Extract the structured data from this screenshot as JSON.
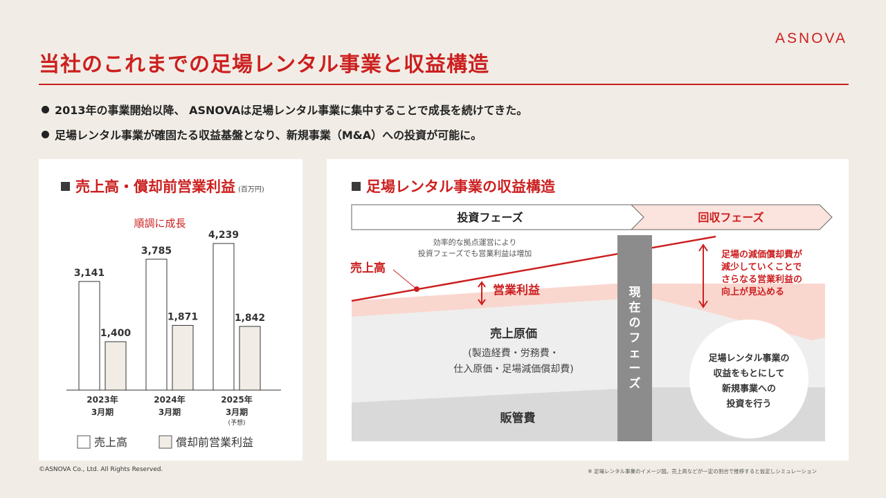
{
  "brand": {
    "logo": "ASNOVA"
  },
  "title": "当社のこれまでの足場レンタル事業と収益構造",
  "bullets": [
    "2013年の事業開始以降、 ASNOVAは足場レンタル事業に集中することで成長を続けてきた。",
    "足場レンタル事業が確固たる収益基盤となり、新規事業（M&A）への投資が可能に。"
  ],
  "left_panel": {
    "heading": "売上高・償却前営業利益",
    "unit": "(百万円)",
    "annotation": "順調に成長",
    "legend": {
      "sales": "売上高",
      "profit": "償却前営業利益"
    }
  },
  "right_panel": {
    "heading": "足場レンタル事業の収益構造",
    "phase_invest": "投資フェーズ",
    "phase_recover": "回収フェーズ",
    "current_phase": "現在のフェーズ",
    "note_line1": "効率的な拠点運営により",
    "note_line2": "投資フェーズでも営業利益は増加",
    "label_sales": "売上高",
    "label_op_profit": "営業利益",
    "label_cogs": "売上原価",
    "label_cogs_detail1": "(製造経費・労務費・",
    "label_cogs_detail2": "仕入原価・足場減価償却費)",
    "label_sga": "販管費",
    "recover_note": [
      "足場の減価償却費が",
      "減少していくことで",
      "さらなる営業利益の",
      "向上が見込める"
    ],
    "circle_text": [
      "足場レンタル事業の",
      "収益をもとにして",
      "新規事業への",
      "投資を行う"
    ]
  },
  "footer": {
    "copyright": "©ASNOVA Co., Ltd. All Rights Reserved.",
    "note": "※ 足場レンタル事業のイメージ図。売上高などが一定の割合で推移すると仮定しシミュレーション"
  },
  "colors": {
    "accent": "#cc1f1f",
    "profit_bar": "#f1ede6",
    "op_profit_area": "#f9d7cf",
    "cogs_area": "#eeeeee",
    "sga_area": "#d9d9d9",
    "current_bar": "#8c8c8c"
  },
  "chart_data": {
    "type": "bar",
    "title": "売上高・償却前営業利益",
    "categories": [
      {
        "year": "2023年",
        "period": "3月期",
        "tag": ""
      },
      {
        "year": "2024年",
        "period": "3月期",
        "tag": ""
      },
      {
        "year": "2025年",
        "period": "3月期",
        "tag": "(予想)"
      }
    ],
    "series": [
      {
        "name": "売上高",
        "values": [
          3141,
          3785,
          4239
        ],
        "labels": [
          "3,141",
          "3,785",
          "4,239"
        ]
      },
      {
        "name": "償却前営業利益",
        "values": [
          1400,
          1871,
          1842
        ],
        "labels": [
          "1,400",
          "1,871",
          "1,842"
        ]
      }
    ],
    "ylim": [
      0,
      4800
    ],
    "grid": false,
    "legend": "bottom"
  }
}
